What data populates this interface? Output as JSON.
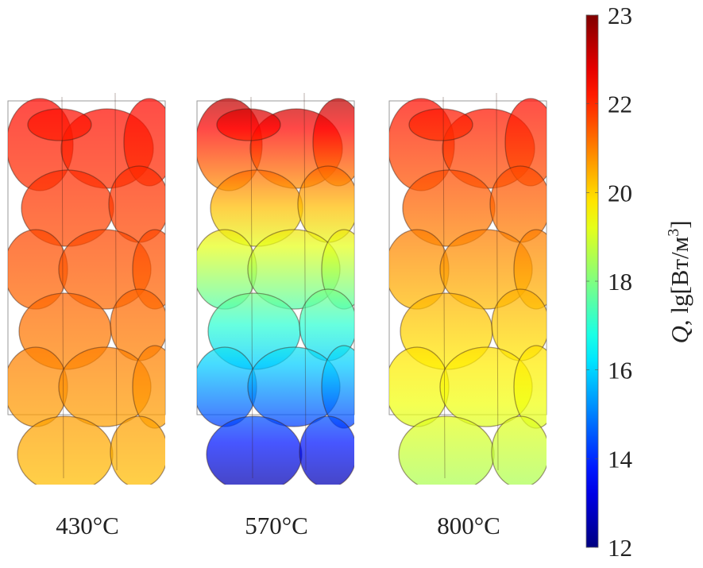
{
  "chart_data": {
    "type": "heatmap",
    "colormap": "jet",
    "colorbar": {
      "min": 12,
      "max": 23,
      "tick_labels": [
        "23",
        "22",
        "20",
        "18",
        "16",
        "14",
        "12"
      ],
      "label": {
        "symbol": "Q",
        "prefix": ", lg[Вт/м",
        "superscript": "3",
        "suffix": "]"
      }
    },
    "panels": [
      {
        "label": "430°C",
        "top_value": 21.6,
        "bottom_value": 19.6
      },
      {
        "label": "570°C",
        "top_value": 22.6,
        "bottom_value": 12.6
      },
      {
        "label": "800°C",
        "top_value": 21.6,
        "bottom_value": 18.0
      }
    ]
  }
}
